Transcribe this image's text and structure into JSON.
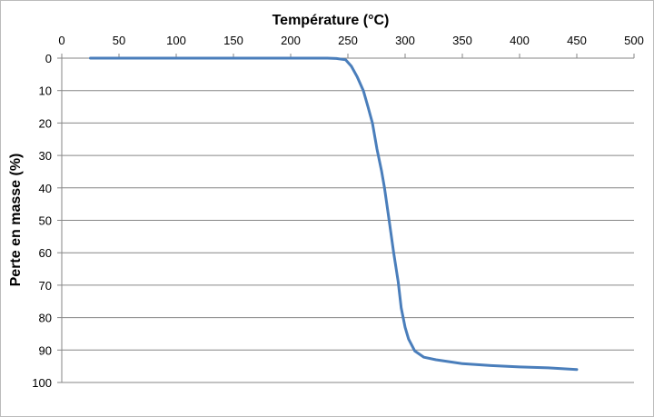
{
  "chart_data": {
    "type": "line",
    "title": "",
    "xlabel": "Température (°C)",
    "ylabel": "Perte en masse (%)",
    "xlim": [
      0,
      500
    ],
    "ylim": [
      0,
      100
    ],
    "y_inverted": true,
    "x_axis_position": "top",
    "grid": "horizontal",
    "xticks": [
      "0",
      "50",
      "100",
      "150",
      "200",
      "250",
      "300",
      "350",
      "400",
      "450",
      "500"
    ],
    "yticks": [
      "0",
      "10",
      "20",
      "30",
      "40",
      "50",
      "60",
      "70",
      "80",
      "90",
      "100"
    ],
    "series": [
      {
        "name": "Perte en masse",
        "color": "#4a7ebb",
        "x": [
          25,
          100,
          200,
          232,
          240,
          248,
          253,
          258,
          263.5,
          267.5,
          271.4,
          275.4,
          279.4,
          282,
          286,
          290,
          294,
          296.6,
          300,
          303,
          308.5,
          316.4,
          327,
          350,
          375,
          400,
          425,
          450
        ],
        "y": [
          0,
          0,
          0,
          0,
          0.1,
          0.5,
          2.5,
          5.7,
          10,
          15,
          20,
          28,
          34.7,
          40,
          50,
          60,
          69,
          77,
          83,
          86.6,
          90.3,
          92.2,
          93,
          94.2,
          94.8,
          95.2,
          95.5,
          96
        ]
      }
    ]
  }
}
